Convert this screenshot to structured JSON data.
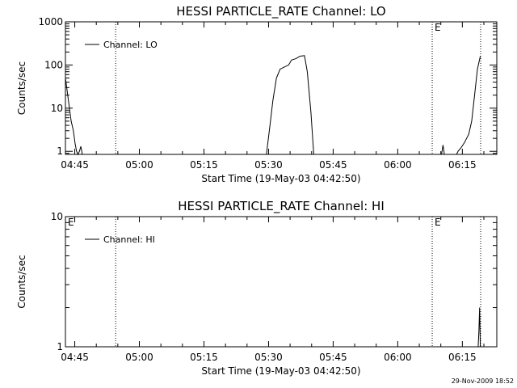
{
  "chart_data": [
    {
      "type": "line",
      "title": "HESSI PARTICLE_RATE Channel: LO",
      "xlabel": "Start Time (19-May-03 04:42:50)",
      "ylabel": "Counts/sec",
      "x_tick_labels": [
        "04:45",
        "05:00",
        "05:15",
        "05:30",
        "05:45",
        "06:00",
        "06:15"
      ],
      "y_tick_labels": [
        "1",
        "10",
        "100",
        "1000"
      ],
      "yscale": "log",
      "xlim": [
        "04:42:50",
        "06:23:00"
      ],
      "ylim": [
        0.85,
        1000
      ],
      "legend_entries": [
        "Channel: LO"
      ],
      "legend_position": "top-left",
      "vertical_markers": [
        "04:54:30",
        "06:08:00",
        "06:19:15"
      ],
      "marker_labels": [
        {
          "x": "06:08:00",
          "text": "E"
        }
      ],
      "series": [
        {
          "name": "Channel: LO",
          "points": [
            [
              "04:42:50",
              50
            ],
            [
              "04:43:10",
              28
            ],
            [
              "04:43:40",
              12
            ],
            [
              "04:44:10",
              5
            ],
            [
              "04:44:40",
              3
            ],
            [
              "04:45:05",
              1.5
            ],
            [
              "04:45:25",
              1
            ],
            [
              "04:45:45",
              0.8
            ],
            [
              "04:46:05",
              1
            ],
            [
              "04:46:25",
              1.3
            ],
            [
              "04:46:45",
              0.8
            ],
            [
              "05:29:30",
              0.8
            ],
            [
              "05:30:20",
              4
            ],
            [
              "05:31:00",
              15
            ],
            [
              "05:31:50",
              50
            ],
            [
              "05:32:40",
              80
            ],
            [
              "05:33:40",
              90
            ],
            [
              "05:34:40",
              100
            ],
            [
              "05:35:20",
              130
            ],
            [
              "05:36:20",
              140
            ],
            [
              "05:37:20",
              160
            ],
            [
              "05:38:20",
              165
            ],
            [
              "05:39:00",
              70
            ],
            [
              "05:39:50",
              8
            ],
            [
              "05:40:30",
              0.8
            ],
            [
              "06:10:10",
              0.8
            ],
            [
              "06:10:30",
              1.4
            ],
            [
              "06:10:50",
              0.8
            ],
            [
              "06:13:40",
              0.8
            ],
            [
              "06:14:00",
              1
            ],
            [
              "06:14:40",
              1.2
            ],
            [
              "06:15:30",
              1.6
            ],
            [
              "06:16:30",
              2.5
            ],
            [
              "06:17:10",
              5
            ],
            [
              "06:17:50",
              20
            ],
            [
              "06:18:30",
              80
            ],
            [
              "06:19:10",
              160
            ]
          ]
        }
      ]
    },
    {
      "type": "line",
      "title": "HESSI PARTICLE_RATE Channel: HI",
      "xlabel": "Start Time (19-May-03 04:42:50)",
      "ylabel": "Counts/sec",
      "x_tick_labels": [
        "04:45",
        "05:00",
        "05:15",
        "05:30",
        "05:45",
        "06:00",
        "06:15"
      ],
      "y_tick_labels": [
        "1",
        "10"
      ],
      "yscale": "log",
      "xlim": [
        "04:42:50",
        "06:23:00"
      ],
      "ylim": [
        1,
        10
      ],
      "legend_entries": [
        "Channel: HI"
      ],
      "legend_position": "top-left",
      "vertical_markers": [
        "04:54:30",
        "06:08:00",
        "06:19:15"
      ],
      "marker_labels": [
        {
          "x": "04:42:50",
          "text": "E"
        },
        {
          "x": "06:08:00",
          "text": "E"
        }
      ],
      "series": [
        {
          "name": "Channel: HI",
          "points": [
            [
              "06:18:40",
              0.95
            ],
            [
              "06:18:50",
              1.3
            ],
            [
              "06:19:00",
              2
            ],
            [
              "06:19:10",
              0.95
            ]
          ]
        }
      ]
    }
  ],
  "timestamp": "29-Nov-2009 18:52"
}
